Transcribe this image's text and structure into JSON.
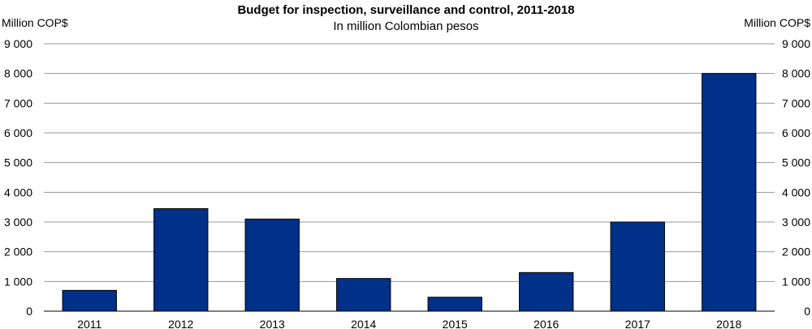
{
  "chart_data": {
    "type": "bar",
    "title": "Budget for inspection, surveillance and control, 2011-2018",
    "subtitle": "In million Colombian pesos",
    "ylabel_left": "Million COP$",
    "ylabel_right": "Million COP$",
    "categories": [
      "2011",
      "2012",
      "2013",
      "2014",
      "2015",
      "2016",
      "2017",
      "2018"
    ],
    "values": [
      700,
      3450,
      3100,
      1100,
      470,
      1300,
      3000,
      8000
    ],
    "ylim": [
      0,
      9000
    ],
    "yticks": [
      0,
      1000,
      2000,
      3000,
      4000,
      5000,
      6000,
      7000,
      8000,
      9000
    ],
    "ytick_labels": [
      "0",
      "1 000",
      "2 000",
      "3 000",
      "4 000",
      "5 000",
      "6 000",
      "7 000",
      "8 000",
      "9 000"
    ],
    "grid": true,
    "bar_color": "#003087"
  }
}
